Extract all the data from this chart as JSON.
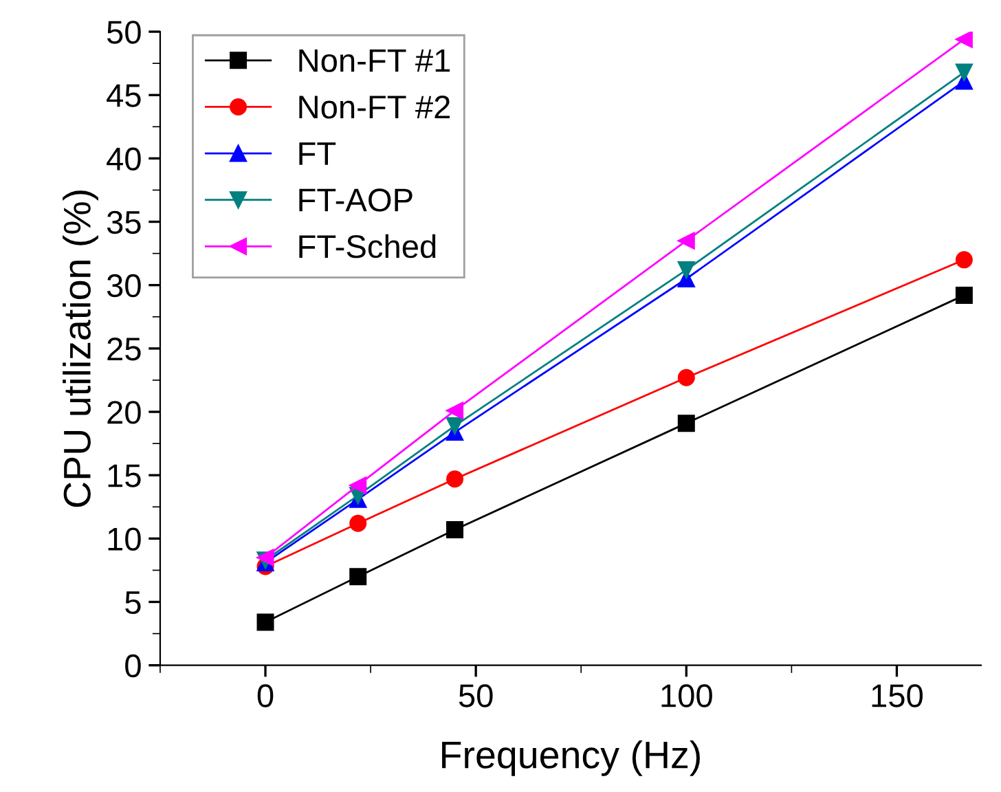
{
  "chart_data": {
    "type": "line",
    "xlabel": "Frequency (Hz)",
    "ylabel": "CPU utilization (%)",
    "x": [
      0,
      22,
      45,
      100,
      166
    ],
    "series": [
      {
        "name": "Non-FT #1",
        "color": "#000000",
        "marker": "square",
        "values": [
          3.4,
          7.0,
          10.7,
          19.1,
          29.2
        ]
      },
      {
        "name": "Non-FT #2",
        "color": "#ff0000",
        "marker": "circle",
        "values": [
          7.8,
          11.2,
          14.7,
          22.7,
          32.0
        ]
      },
      {
        "name": "FT",
        "color": "#0000ff",
        "marker": "triangle",
        "values": [
          8.1,
          13.1,
          18.4,
          30.5,
          46.1
        ]
      },
      {
        "name": "FT-AOP",
        "color": "#008080",
        "marker": "triangle_down",
        "values": [
          8.3,
          13.4,
          18.9,
          31.2,
          46.8
        ]
      },
      {
        "name": "FT-Sched",
        "color": "#ff00ff",
        "marker": "triangle_left",
        "values": [
          8.5,
          14.2,
          20.1,
          33.5,
          49.4
        ]
      }
    ],
    "xlim": [
      -25,
      170
    ],
    "xticks": [
      0,
      50,
      100,
      150
    ],
    "ylim": [
      0,
      50
    ],
    "yticks": [
      0,
      5,
      10,
      15,
      20,
      25,
      30,
      35,
      40,
      45,
      50
    ],
    "grid": false,
    "legend": "top left",
    "line_style": "solid"
  }
}
